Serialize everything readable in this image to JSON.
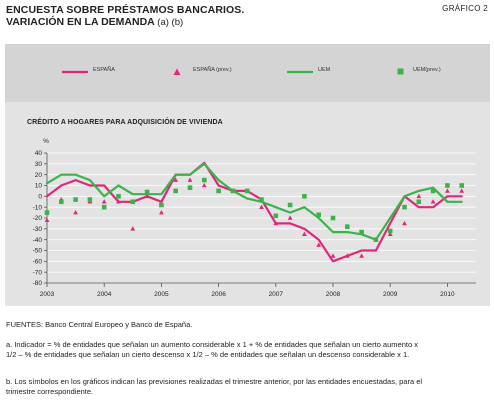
{
  "header": {
    "title": "ENCUESTA SOBRE PRÉSTAMOS BANCARIOS.",
    "subtitle": "VARIACIÓN EN LA DEMANDA",
    "subtitle_notes": "(a) (b)",
    "figure_label": "GRÁFICO 2"
  },
  "colors": {
    "spain": "#e0287a",
    "uem": "#3cb34a",
    "axis": "#555555",
    "grid": "#ffffff"
  },
  "chart_data": {
    "type": "line",
    "title": "CRÉDITO A HOGARES PARA ADQUISICIÓN DE VIVIENDA",
    "ylabel": "%",
    "ylim": [
      -80,
      40
    ],
    "yticks": [
      40,
      30,
      20,
      10,
      0,
      -10,
      -20,
      -30,
      -40,
      -50,
      -60,
      -70,
      -80
    ],
    "xlim": [
      2003,
      2010.5
    ],
    "xticks": [
      2003,
      2004,
      2005,
      2006,
      2007,
      2008,
      2009,
      2010
    ],
    "legend_position": "top",
    "series": [
      {
        "name": "ESPAÑA",
        "kind": "line",
        "color": "#e0287a",
        "x": [
          2003.0,
          2003.25,
          2003.5,
          2003.75,
          2004.0,
          2004.25,
          2004.5,
          2004.75,
          2005.0,
          2005.25,
          2005.5,
          2005.75,
          2006.0,
          2006.25,
          2006.5,
          2006.75,
          2007.0,
          2007.25,
          2007.5,
          2007.75,
          2008.0,
          2008.25,
          2008.5,
          2008.75,
          2009.0,
          2009.25,
          2009.5,
          2009.75,
          2010.0,
          2010.25
        ],
        "y": [
          0,
          10,
          15,
          10,
          10,
          -5,
          -5,
          0,
          -5,
          20,
          20,
          31,
          10,
          5,
          5,
          -3,
          -25,
          -25,
          -30,
          -40,
          -60,
          -55,
          -50,
          -50,
          -25,
          0,
          -10,
          -10,
          0,
          0
        ]
      },
      {
        "name": "ESPAÑA (prev.)",
        "kind": "triangle",
        "color": "#e0287a",
        "x": [
          2003.0,
          2003.25,
          2003.5,
          2003.75,
          2004.0,
          2004.25,
          2004.5,
          2004.75,
          2005.0,
          2005.25,
          2005.5,
          2005.75,
          2006.0,
          2006.25,
          2006.5,
          2006.75,
          2007.0,
          2007.25,
          2007.5,
          2007.75,
          2008.0,
          2008.25,
          2008.5,
          2008.75,
          2009.0,
          2009.25,
          2009.5,
          2009.75,
          2010.0,
          2010.25
        ],
        "y": [
          -22,
          -3,
          -15,
          -5,
          -5,
          -5,
          -30,
          0,
          -15,
          15,
          15,
          10,
          5,
          5,
          5,
          -10,
          -25,
          -20,
          -35,
          -45,
          -55,
          -55,
          -55,
          -40,
          -35,
          -25,
          0,
          -5,
          5,
          5
        ]
      },
      {
        "name": "UEM",
        "kind": "line",
        "color": "#3cb34a",
        "x": [
          2003.0,
          2003.25,
          2003.5,
          2003.75,
          2004.0,
          2004.25,
          2004.5,
          2004.75,
          2005.0,
          2005.25,
          2005.5,
          2005.75,
          2006.0,
          2006.25,
          2006.5,
          2006.75,
          2007.0,
          2007.25,
          2007.5,
          2007.75,
          2008.0,
          2008.25,
          2008.5,
          2008.75,
          2009.0,
          2009.25,
          2009.5,
          2009.75,
          2010.0,
          2010.25
        ],
        "y": [
          12,
          20,
          20,
          15,
          0,
          10,
          2,
          2,
          2,
          20,
          20,
          30,
          15,
          5,
          -2,
          -5,
          -10,
          -15,
          -10,
          -20,
          -33,
          -33,
          -35,
          -40,
          -20,
          0,
          5,
          8,
          -5,
          -5
        ]
      },
      {
        "name": "UEM(prev.)",
        "kind": "square",
        "color": "#3cb34a",
        "x": [
          2003.0,
          2003.25,
          2003.5,
          2003.75,
          2004.0,
          2004.25,
          2004.5,
          2004.75,
          2005.0,
          2005.25,
          2005.5,
          2005.75,
          2006.0,
          2006.25,
          2006.5,
          2006.75,
          2007.0,
          2007.25,
          2007.5,
          2007.75,
          2008.0,
          2008.25,
          2008.5,
          2008.75,
          2009.0,
          2009.25,
          2009.5,
          2009.75,
          2010.0,
          2010.25
        ],
        "y": [
          -15,
          -5,
          -3,
          -3,
          -10,
          0,
          -5,
          4,
          -8,
          5,
          8,
          15,
          5,
          5,
          5,
          -3,
          -18,
          -8,
          0,
          -17,
          -20,
          -28,
          -33,
          -40,
          -32,
          -10,
          -5,
          5,
          10,
          10
        ]
      }
    ]
  },
  "notes": {
    "source": "FUENTES: Banco Central Europeo y Banco de España.",
    "a": "a. Indicador = % de entidades que señalan un aumento considerable x 1 + % de entidades que señalan un cierto aumento x 1/2 – % de entidades que señalan un cierto descenso x 1/2 – % de entidades que señalan un descenso considerable x 1.",
    "b": "b. Los símbolos en los gráficos indican las previsiones realizadas el trimestre anterior, por las entidades encuestadas, para el trimestre correspondiente."
  }
}
